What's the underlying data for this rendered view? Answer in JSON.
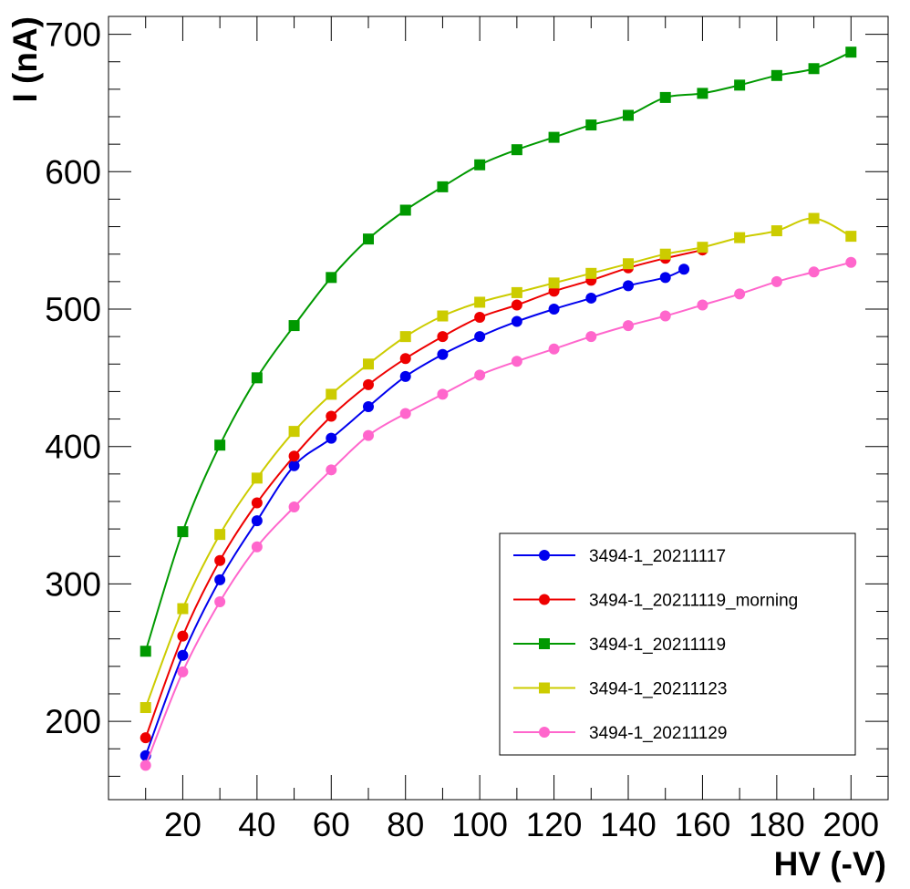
{
  "chart_data": {
    "type": "line",
    "title": "",
    "xlabel": "HV (-V)",
    "ylabel": "I (nA)",
    "xlim": [
      0,
      210
    ],
    "ylim": [
      143,
      713
    ],
    "x_ticks": [
      20,
      40,
      60,
      80,
      100,
      120,
      140,
      160,
      180,
      200
    ],
    "y_ticks": [
      200,
      300,
      400,
      500,
      600,
      700
    ],
    "grid": false,
    "legend_position": "bottom-right",
    "series": [
      {
        "name": "3494-1_20211117",
        "color": "#0000ee",
        "marker": "circle",
        "x": [
          10,
          20,
          30,
          40,
          50,
          60,
          70,
          80,
          90,
          100,
          110,
          120,
          130,
          140,
          150,
          155
        ],
        "y": [
          175,
          248,
          303,
          346,
          386,
          406,
          429,
          451,
          467,
          480,
          491,
          500,
          508,
          517,
          523,
          529
        ]
      },
      {
        "name": "3494-1_20211119_morning",
        "color": "#ee0000",
        "marker": "circle",
        "x": [
          10,
          20,
          30,
          40,
          50,
          60,
          70,
          80,
          90,
          100,
          110,
          120,
          130,
          140,
          150,
          160
        ],
        "y": [
          188,
          262,
          317,
          359,
          393,
          422,
          445,
          464,
          480,
          494,
          503,
          513,
          521,
          530,
          537,
          543
        ]
      },
      {
        "name": "3494-1_20211119",
        "color": "#009900",
        "marker": "square",
        "x": [
          10,
          20,
          30,
          40,
          50,
          60,
          70,
          80,
          90,
          100,
          110,
          120,
          130,
          140,
          150,
          160,
          170,
          180,
          190,
          200
        ],
        "y": [
          251,
          338,
          401,
          450,
          488,
          523,
          551,
          572,
          589,
          605,
          616,
          625,
          634,
          641,
          654,
          657,
          663,
          670,
          675,
          687
        ]
      },
      {
        "name": "3494-1_20211123",
        "color": "#cccc00",
        "marker": "square",
        "x": [
          10,
          20,
          30,
          40,
          50,
          60,
          70,
          80,
          90,
          100,
          110,
          120,
          130,
          140,
          150,
          160,
          170,
          180,
          190,
          200
        ],
        "y": [
          210,
          282,
          336,
          377,
          411,
          438,
          460,
          480,
          495,
          505,
          512,
          519,
          526,
          533,
          540,
          545,
          552,
          557,
          566,
          553
        ]
      },
      {
        "name": "3494-1_20211129",
        "color": "#ff66cc",
        "marker": "circle",
        "x": [
          10,
          20,
          30,
          40,
          50,
          60,
          70,
          80,
          90,
          100,
          110,
          120,
          130,
          140,
          150,
          160,
          170,
          180,
          190,
          200
        ],
        "y": [
          168,
          236,
          287,
          327,
          356,
          383,
          408,
          424,
          438,
          452,
          462,
          471,
          480,
          488,
          495,
          503,
          511,
          520,
          527,
          534
        ]
      }
    ]
  }
}
